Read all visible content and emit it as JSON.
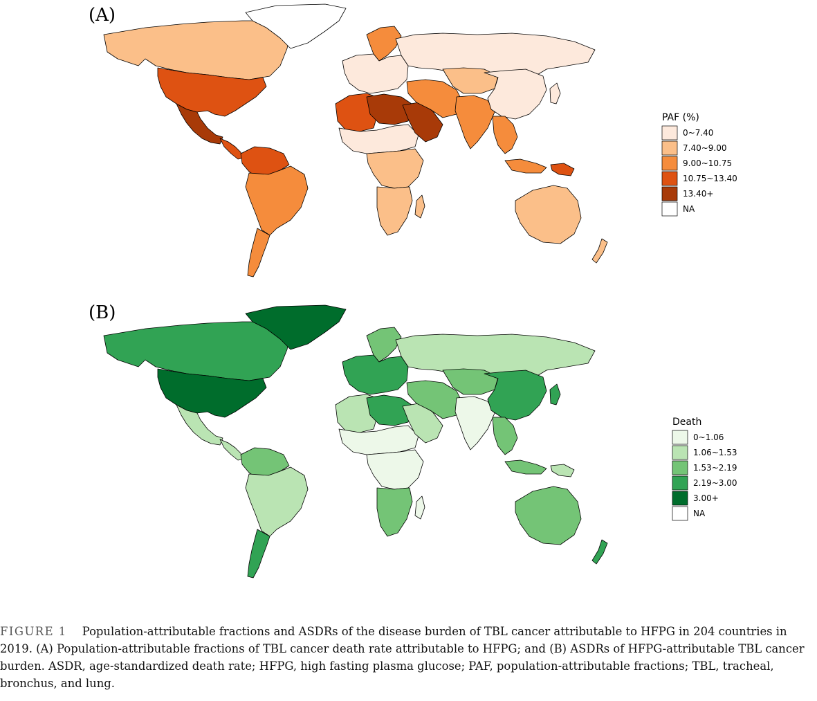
{
  "panels": [
    {
      "label": "(A)",
      "legend": {
        "title": "PAF (%)",
        "items": [
          {
            "label": "0~7.40",
            "color": "#fde9dc"
          },
          {
            "label": "7.40~9.00",
            "color": "#fbbf89"
          },
          {
            "label": "9.00~10.75",
            "color": "#f58c3c"
          },
          {
            "label": "10.75~13.40",
            "color": "#de5212"
          },
          {
            "label": "13.40+",
            "color": "#a83a08"
          },
          {
            "label": "NA",
            "color": "#ffffff"
          }
        ]
      },
      "region_fills": {
        "north_america": "#fbbf89",
        "greenland": "#ffffff",
        "usa": "#de5212",
        "mexico": "#a83a08",
        "central_america": "#de5212",
        "northern_south_america": "#de5212",
        "south_america": "#f58c3c",
        "patagonia": "#f58c3c",
        "europe": "#fde9dc",
        "scandinavia": "#f58c3c",
        "russia": "#fde9dc",
        "north_africa": "#de5212",
        "libya_egypt": "#a83a08",
        "sahel": "#fde9dc",
        "central_africa": "#fbbf89",
        "southern_africa": "#fbbf89",
        "madagascar": "#fbbf89",
        "arabia": "#a83a08",
        "middle_east": "#f58c3c",
        "central_asia": "#fbbf89",
        "south_asia": "#f58c3c",
        "china": "#fde9dc",
        "southeast_asia": "#f58c3c",
        "japan": "#fde9dc",
        "indonesia": "#f58c3c",
        "papua": "#de5212",
        "australia": "#fbbf89",
        "new_zealand": "#fbbf89"
      }
    },
    {
      "label": "(B)",
      "legend": {
        "title": "Death",
        "items": [
          {
            "label": "0~1.06",
            "color": "#edf8e9"
          },
          {
            "label": "1.06~1.53",
            "color": "#bae4b3"
          },
          {
            "label": "1.53~2.19",
            "color": "#74c476"
          },
          {
            "label": "2.19~3.00",
            "color": "#31a354"
          },
          {
            "label": "3.00+",
            "color": "#006d2c"
          },
          {
            "label": "NA",
            "color": "#ffffff"
          }
        ]
      },
      "region_fills": {
        "north_america": "#31a354",
        "greenland": "#006d2c",
        "usa": "#006d2c",
        "mexico": "#bae4b3",
        "central_america": "#bae4b3",
        "northern_south_america": "#74c476",
        "south_america": "#bae4b3",
        "patagonia": "#31a354",
        "europe": "#31a354",
        "scandinavia": "#74c476",
        "russia": "#bae4b3",
        "north_africa": "#bae4b3",
        "libya_egypt": "#31a354",
        "sahel": "#edf8e9",
        "central_africa": "#edf8e9",
        "southern_africa": "#74c476",
        "madagascar": "#edf8e9",
        "arabia": "#bae4b3",
        "middle_east": "#74c476",
        "central_asia": "#74c476",
        "south_asia": "#edf8e9",
        "china": "#31a354",
        "southeast_asia": "#74c476",
        "japan": "#31a354",
        "indonesia": "#74c476",
        "papua": "#bae4b3",
        "australia": "#74c476",
        "new_zealand": "#31a354"
      }
    }
  ],
  "caption": {
    "label": "FIGURE 1",
    "text": "Population-attributable fractions and ASDRs of the disease burden of TBL cancer attributable to HFPG in 204 countries in 2019. (A) Population-attributable fractions of TBL cancer death rate attributable to HFPG; and (B) ASDRs of HFPG-attributable TBL cancer burden. ASDR, age-standardized death rate; HFPG, high fasting plasma glucose; PAF, population-attributable fractions; TBL, tracheal, bronchus, and lung."
  }
}
